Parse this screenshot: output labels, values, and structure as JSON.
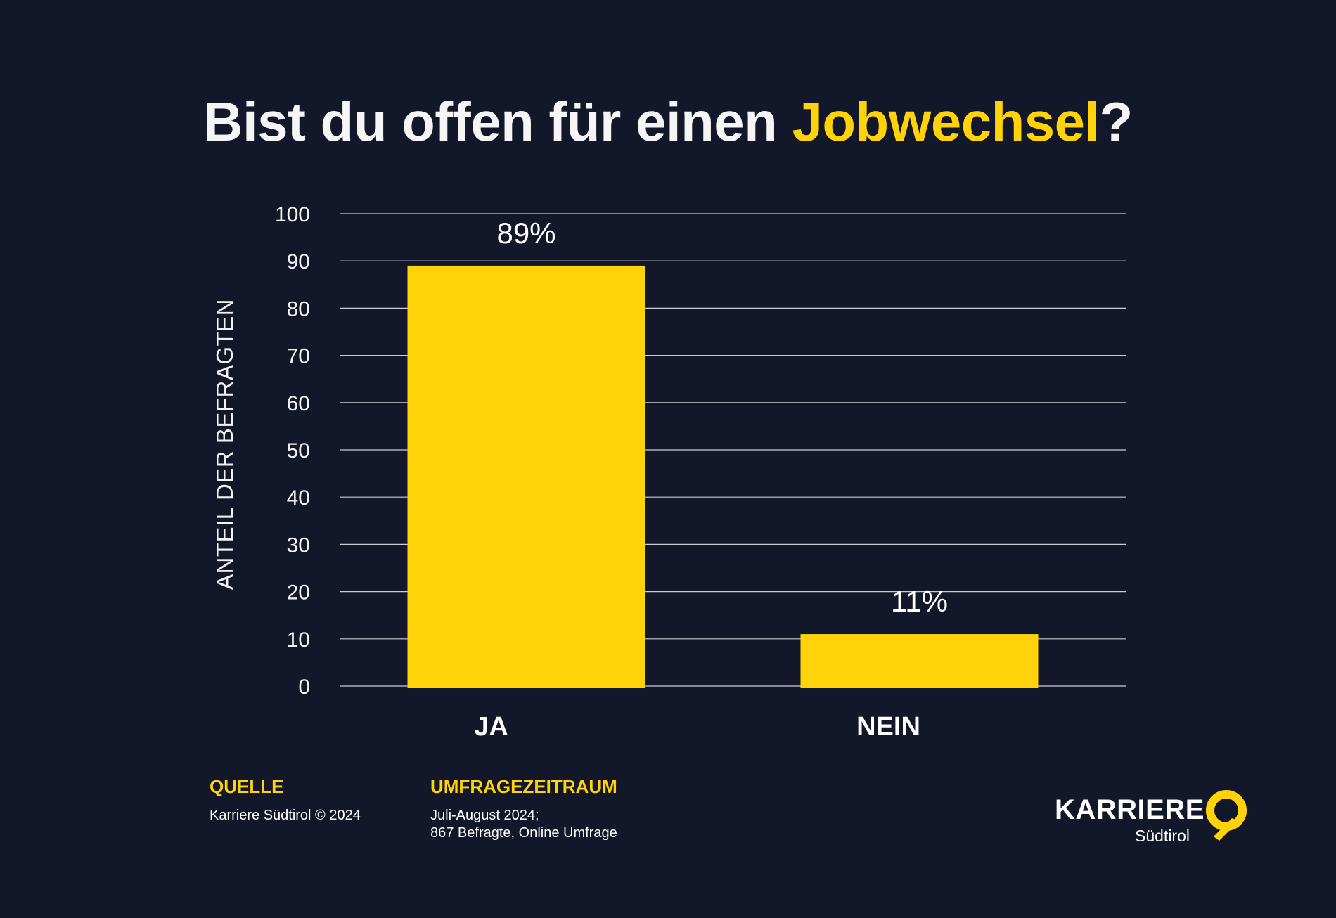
{
  "title": {
    "part1": "Bist du offen für einen ",
    "highlight": "Jobwechsel",
    "part2": "?"
  },
  "colors": {
    "background": "#121829",
    "accent": "#ffd20a",
    "text": "#ffffff",
    "grid": "#c8ccd4"
  },
  "chart_data": {
    "type": "bar",
    "categories": [
      "JA",
      "NEIN"
    ],
    "values": [
      89,
      11
    ],
    "data_labels": [
      "89%",
      "11%"
    ],
    "ylabel": "ANTEIL DER BEFRAGTEN",
    "xlabel": "",
    "ylim": [
      0,
      100
    ],
    "yticks": [
      0,
      10,
      20,
      30,
      40,
      50,
      60,
      70,
      80,
      90,
      100
    ],
    "grid": true,
    "bar_color": "#ffd20a"
  },
  "footer": {
    "source_heading": "QUELLE",
    "source_text": "Karriere Südtirol © 2024",
    "period_heading": "UMFRAGEZEITRAUM",
    "period_line1": "Juli-August 2024;",
    "period_line2": "867 Befragte, Online Umfrage"
  },
  "logo": {
    "main": "KARRIERE",
    "sub": "Südtirol",
    "icon": "location-pin-icon"
  }
}
